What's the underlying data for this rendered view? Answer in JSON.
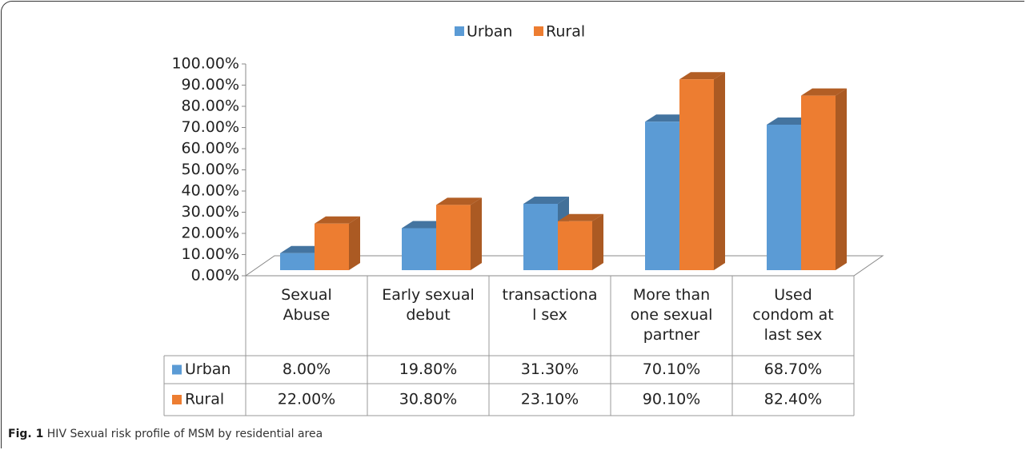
{
  "chart_data": {
    "type": "bar3d",
    "categories": [
      "Sexual\nAbuse",
      "Early sexual\ndebut",
      "transactiona\nl sex",
      "More than\none sexual\npartner",
      "Used\ncondom at\nlast sex"
    ],
    "series": [
      {
        "name": "Urban",
        "color": "#5b9bd5",
        "values": [
          8,
          19.8,
          31.3,
          70.1,
          68.7
        ],
        "value_labels": [
          "8.00%",
          "19.80%",
          "31.30%",
          "70.10%",
          "68.70%"
        ]
      },
      {
        "name": "Rural",
        "color": "#ed7d31",
        "values": [
          22,
          30.8,
          23.1,
          90.1,
          82.4
        ],
        "value_labels": [
          "22.00%",
          "30.80%",
          "23.10%",
          "90.10%",
          "82.40%"
        ]
      }
    ],
    "ylim": [
      0,
      100
    ],
    "yticks": [
      {
        "value": 0,
        "label": "0.00%"
      },
      {
        "value": 10,
        "label": "10.00%"
      },
      {
        "value": 20,
        "label": "20.00%"
      },
      {
        "value": 30,
        "label": "30.00%"
      },
      {
        "value": 40,
        "label": "40.00%"
      },
      {
        "value": 50,
        "label": "50.00%"
      },
      {
        "value": 60,
        "label": "60.00%"
      },
      {
        "value": 70,
        "label": "70.00%"
      },
      {
        "value": 80,
        "label": "80.00%"
      },
      {
        "value": 90,
        "label": "90.00%"
      },
      {
        "value": 100,
        "label": "100.00%"
      }
    ],
    "legend": "top"
  },
  "caption": {
    "label": "Fig. 1",
    "text": "HIV Sexual risk profile of MSM by residential area"
  }
}
